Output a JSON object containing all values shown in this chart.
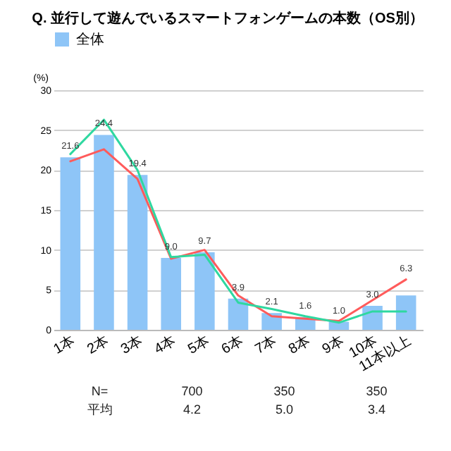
{
  "chart_data": {
    "type": "bar",
    "title": "Q. 並行して遊んでいるスマートフォンゲームの本数（OS別）",
    "ylabel": "(%)",
    "categories": [
      "1本",
      "2本",
      "3本",
      "4本",
      "5本",
      "6本",
      "7本",
      "8本",
      "9本",
      "10本",
      "11本以上"
    ],
    "series": [
      {
        "name": "全体",
        "color": "#8ec5f7",
        "values": [
          21.6,
          24.4,
          19.4,
          9.0,
          9.7,
          3.9,
          2.1,
          1.6,
          1.0,
          3.0,
          4.3
        ],
        "value_labels": [
          "21.6",
          "24.4",
          "19.4",
          "9.0",
          "9.7",
          "3.9",
          "2.1",
          "1.6",
          "1.0",
          "3.0",
          null
        ]
      },
      {
        "type": "line",
        "color": "#ff5b5b",
        "values": [
          21.1,
          22.6,
          18.9,
          8.9,
          10.0,
          4.3,
          1.7,
          1.4,
          1.1,
          3.7,
          6.3
        ],
        "value_labels": [
          null,
          null,
          null,
          null,
          null,
          null,
          null,
          null,
          null,
          null,
          "6.3"
        ]
      },
      {
        "type": "line",
        "color": "#2fd8a0",
        "values": [
          22.0,
          26.3,
          20.0,
          9.1,
          9.4,
          3.4,
          2.6,
          1.7,
          0.9,
          2.3,
          2.3
        ]
      }
    ],
    "ylim": [
      0,
      30
    ],
    "yticks": [
      0,
      5,
      10,
      15,
      20,
      25,
      30
    ],
    "grid": "y",
    "legend": "top",
    "annotations": [
      "N=",
      "700",
      "350",
      "350",
      "平均",
      "4.2",
      "5.0",
      "3.4"
    ]
  }
}
